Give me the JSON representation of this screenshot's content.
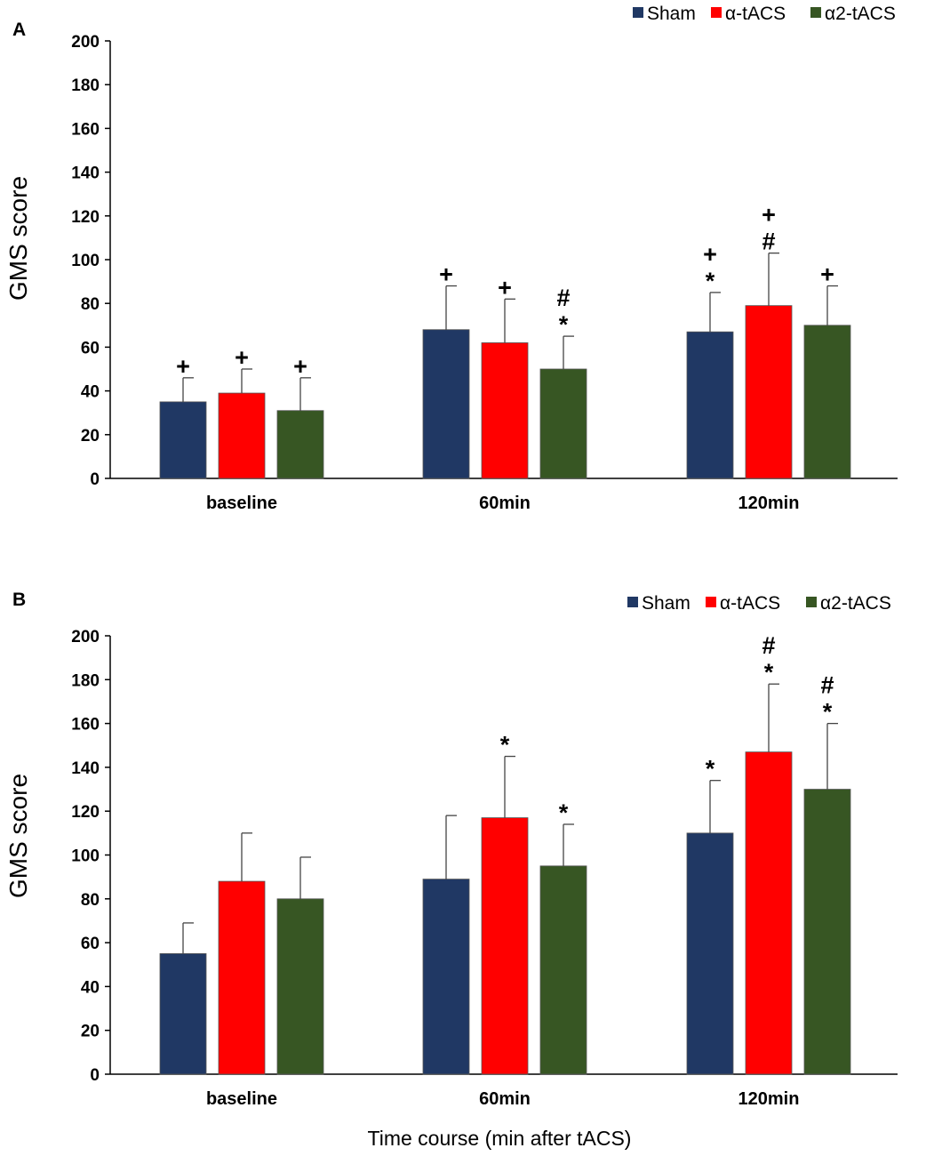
{
  "chart_data": [
    {
      "type": "bar",
      "panel_label": "A",
      "title": "",
      "ylabel": "GMS score",
      "xlabel": "",
      "ylim": [
        0,
        200
      ],
      "yticks": [
        "0",
        "20",
        "40",
        "60",
        "80",
        "100",
        "120",
        "140",
        "160",
        "180",
        "200"
      ],
      "categories": [
        "baseline",
        "60min",
        "120min"
      ],
      "legend_position": "top-right",
      "series": [
        {
          "name": "Sham",
          "color": "#203864",
          "values": [
            35,
            68,
            67
          ],
          "errors": [
            11,
            20,
            18
          ],
          "annotations": [
            [
              "+"
            ],
            [
              "+"
            ],
            [
              "*",
              "+"
            ]
          ]
        },
        {
          "name": "α-tACS",
          "color": "#ff0000",
          "values": [
            39,
            62,
            79
          ],
          "errors": [
            11,
            20,
            24
          ],
          "annotations": [
            [
              "+"
            ],
            [
              "+"
            ],
            [
              "#",
              "+"
            ]
          ]
        },
        {
          "name": "α2-tACS",
          "color": "#375623",
          "values": [
            31,
            50,
            70
          ],
          "errors": [
            15,
            15,
            18
          ],
          "annotations": [
            [
              "+"
            ],
            [
              "*",
              "#"
            ],
            [
              "+"
            ]
          ]
        }
      ]
    },
    {
      "type": "bar",
      "panel_label": "B",
      "title": "",
      "ylabel": "GMS score",
      "xlabel": "Time course (min after tACS)",
      "ylim": [
        0,
        200
      ],
      "yticks": [
        "0",
        "20",
        "40",
        "60",
        "80",
        "100",
        "120",
        "140",
        "160",
        "180",
        "200"
      ],
      "categories": [
        "baseline",
        "60min",
        "120min"
      ],
      "legend_position": "top-right",
      "series": [
        {
          "name": "Sham",
          "color": "#203864",
          "values": [
            55,
            89,
            110
          ],
          "errors": [
            14,
            29,
            24
          ],
          "annotations": [
            [],
            [],
            [
              "*"
            ]
          ]
        },
        {
          "name": "α-tACS",
          "color": "#ff0000",
          "values": [
            88,
            117,
            147
          ],
          "errors": [
            22,
            28,
            31
          ],
          "annotations": [
            [],
            [
              "*"
            ],
            [
              "*",
              "#"
            ]
          ]
        },
        {
          "name": "α2-tACS",
          "color": "#375623",
          "values": [
            80,
            95,
            130
          ],
          "errors": [
            19,
            19,
            30
          ],
          "annotations": [
            [],
            [
              "*"
            ],
            [
              "*",
              "#"
            ]
          ]
        }
      ]
    }
  ]
}
